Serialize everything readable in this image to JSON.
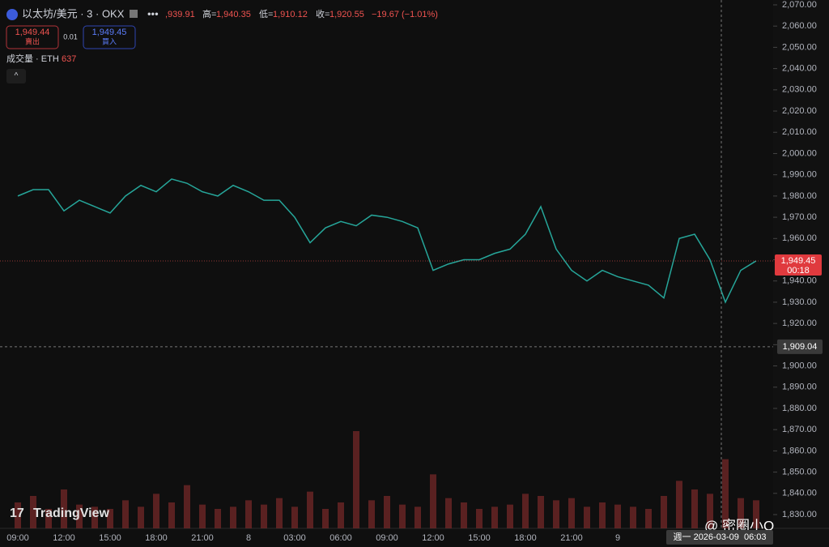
{
  "chart_data": {
    "type": "line",
    "symbol": "以太坊/美元 · 3 · OKX",
    "ohlc": [
      {
        "key": null,
        "value": ",939.91"
      },
      {
        "key": "高=",
        "value": "1,940.35"
      },
      {
        "key": "低=",
        "value": "1,910.12"
      },
      {
        "key": "收=",
        "value": "1,920.55"
      },
      {
        "key": null,
        "value": "−19.67 (−1.01%)"
      }
    ],
    "sell": {
      "price": "1,949.44",
      "label": "賣出"
    },
    "spread": "0.01",
    "buy": {
      "price": "1,949.45",
      "label": "買入"
    },
    "volume_label": "成交量 · ETH",
    "volume_value": "637",
    "brand": "TradingView",
    "watermark": "@ 密圈小Q",
    "categories": [
      "09:00",
      null,
      null,
      "12:00",
      null,
      null,
      "15:00",
      null,
      null,
      "18:00",
      null,
      null,
      "21:00",
      null,
      null,
      "8",
      null,
      null,
      "03:00",
      null,
      null,
      "06:00",
      null,
      null,
      "09:00",
      null,
      null,
      "12:00",
      null,
      null,
      "15:00",
      null,
      null,
      "18:00",
      null,
      null,
      "21:00",
      null,
      null,
      "9",
      null,
      null,
      null,
      null,
      null,
      null,
      null,
      null,
      null
    ],
    "series": [
      {
        "name": "ETH",
        "color": "#26a69a",
        "values": [
          1980,
          1983,
          1983,
          1973,
          1978,
          1975,
          1972,
          1980,
          1985,
          1982,
          1988,
          1986,
          1982,
          1980,
          1985,
          1982,
          1978,
          1978,
          1970,
          1958,
          1965,
          1968,
          1966,
          1971,
          1970,
          1968,
          1965,
          1945,
          1948,
          1950,
          1950,
          1953,
          1955,
          1962,
          1975,
          1955,
          1945,
          1940,
          1945,
          1942,
          1940,
          1938,
          1932,
          1960,
          1962,
          1950,
          1930,
          1945,
          1949.45
        ]
      },
      {
        "name": "成交量",
        "color": "#7a2a2a",
        "values": [
          1200,
          1500,
          900,
          1800,
          1100,
          1000,
          900,
          1300,
          1000,
          1600,
          1200,
          2000,
          1100,
          900,
          1000,
          1300,
          1100,
          1400,
          1000,
          1700,
          900,
          1200,
          4500,
          1300,
          1500,
          1100,
          1000,
          2500,
          1400,
          1200,
          900,
          1000,
          1100,
          1600,
          1500,
          1300,
          1400,
          1000,
          1200,
          1100,
          1000,
          900,
          1500,
          2200,
          1800,
          1600,
          3200,
          1400,
          1300
        ]
      }
    ],
    "price_tag": {
      "value": 1949.45,
      "label": "1,949.45",
      "timer": "00:18"
    },
    "crosshair": {
      "value": 1909.04,
      "label": "1,909.04",
      "time": "週一 2026-03-09  06:03"
    },
    "ylim": [
      1830,
      2070
    ],
    "yticks": [
      {
        "value": 1830,
        "label": "1,830.00"
      },
      {
        "value": 1840,
        "label": "1,840.00"
      },
      {
        "value": 1850,
        "label": "1,850.00"
      },
      {
        "value": 1860,
        "label": "1,860.00"
      },
      {
        "value": 1870,
        "label": "1,870.00"
      },
      {
        "value": 1880,
        "label": "1,880.00"
      },
      {
        "value": 1890,
        "label": "1,890.00"
      },
      {
        "value": 1900,
        "label": "1,900.00"
      },
      {
        "value": 1910,
        "label": "1,910.00"
      },
      {
        "value": 1920,
        "label": "1,920.00"
      },
      {
        "value": 1930,
        "label": "1,930.00"
      },
      {
        "value": 1940,
        "label": "1,940.00"
      },
      {
        "value": 1950,
        "label": "1,950.00"
      },
      {
        "value": 1960,
        "label": "1,960.00"
      },
      {
        "value": 1970,
        "label": "1,970.00"
      },
      {
        "value": 1980,
        "label": "1,980.00"
      },
      {
        "value": 1990,
        "label": "1,990.00"
      },
      {
        "value": 2000,
        "label": "2,000.00"
      },
      {
        "value": 2010,
        "label": "2,010.00"
      },
      {
        "value": 2020,
        "label": "2,020.00"
      },
      {
        "value": 2030,
        "label": "2,030.00"
      },
      {
        "value": 2040,
        "label": "2,040.00"
      },
      {
        "value": 2050,
        "label": "2,050.00"
      },
      {
        "value": 2060,
        "label": "2,060.00"
      },
      {
        "value": 2070,
        "label": "2,070.00"
      }
    ]
  }
}
